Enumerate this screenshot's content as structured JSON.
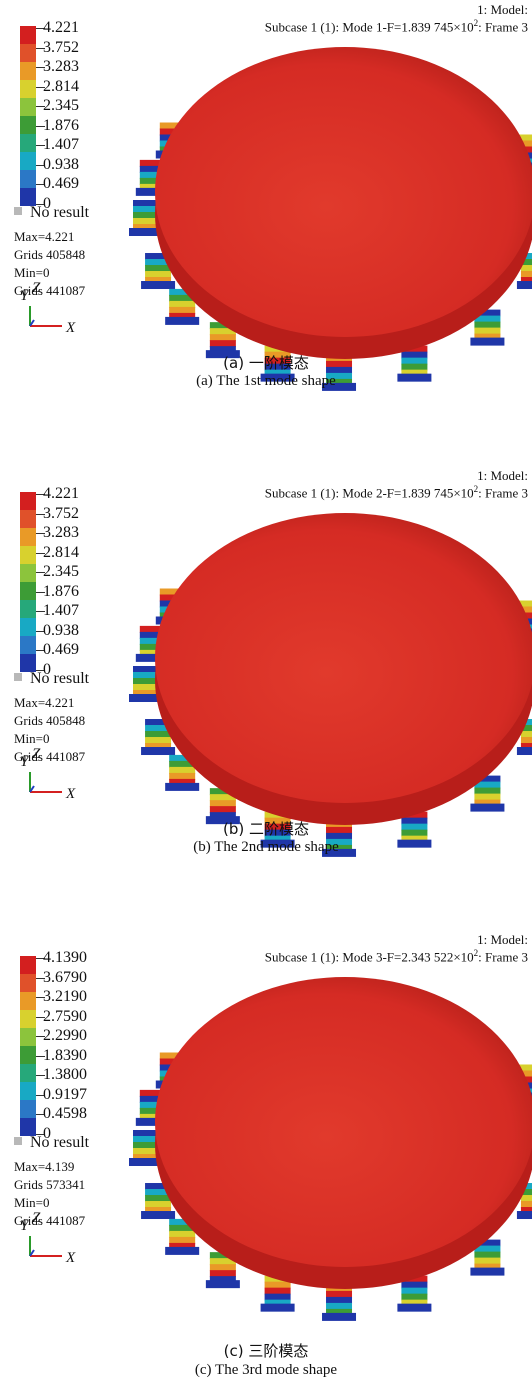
{
  "colors": {
    "legend": [
      "#1f36a8",
      "#2b78c6",
      "#18a9c4",
      "#26a87a",
      "#3d9c36",
      "#8cc43c",
      "#d8d12e",
      "#e99a27",
      "#e0512a",
      "#d31f1f"
    ],
    "no_result": "#b8b8b8",
    "disk": "#d52b24",
    "disk_side": "#b81e1a"
  },
  "panels": [
    {
      "model": "1: Model:",
      "subcase_pre": "Subcase 1 (1): Mode 1-F=1.839 745×10",
      "subcase_sup": "2",
      "subcase_post": ": Frame 3",
      "legend_ticks": [
        "4.221",
        "3.752",
        "3.283",
        "2.814",
        "2.345",
        "1.876",
        "1.407",
        "0.938",
        "0.469",
        "0"
      ],
      "no_result": "No result",
      "max": "Max=4.221",
      "max_grids": "Grids 405848",
      "min": "Min=0",
      "min_grids": "Grids 441087",
      "axis_y": "Y",
      "axis_z": "Z",
      "axis_x": "X",
      "caption_cn": "(a) 一阶模态",
      "caption_en": "(a) The 1st mode shape"
    },
    {
      "model": "1: Model:",
      "subcase_pre": "Subcase 1 (1): Mode 2-F=1.839 745×10",
      "subcase_sup": "2",
      "subcase_post": ": Frame 3",
      "legend_ticks": [
        "4.221",
        "3.752",
        "3.283",
        "2.814",
        "2.345",
        "1.876",
        "1.407",
        "0.938",
        "0.469",
        "0"
      ],
      "no_result": "No result",
      "max": "Max=4.221",
      "max_grids": "Grids 405848",
      "min": "Min=0",
      "min_grids": "Grids 441087",
      "axis_y": "Y",
      "axis_z": "Z",
      "axis_x": "X",
      "caption_cn": "(b) 二阶模态",
      "caption_en": "(b) The 2nd mode shape"
    },
    {
      "model": "1: Model:",
      "subcase_pre": "Subcase 1 (1): Mode 3-F=2.343 522×10",
      "subcase_sup": "2",
      "subcase_post": ": Frame 3",
      "legend_ticks": [
        "4.1390",
        "3.6790",
        "3.2190",
        "2.7590",
        "2.2990",
        "1.8390",
        "1.3800",
        "0.9197",
        "0.4598",
        "0"
      ],
      "no_result": "No result",
      "max": "Max=4.139",
      "max_grids": "Grids 573341",
      "min": "Min=0",
      "min_grids": "Grids 441087",
      "axis_y": "Y",
      "axis_z": "Z",
      "axis_x": "X",
      "caption_cn": "(c) 三阶模态",
      "caption_en": "(c) The 3rd mode shape"
    }
  ]
}
